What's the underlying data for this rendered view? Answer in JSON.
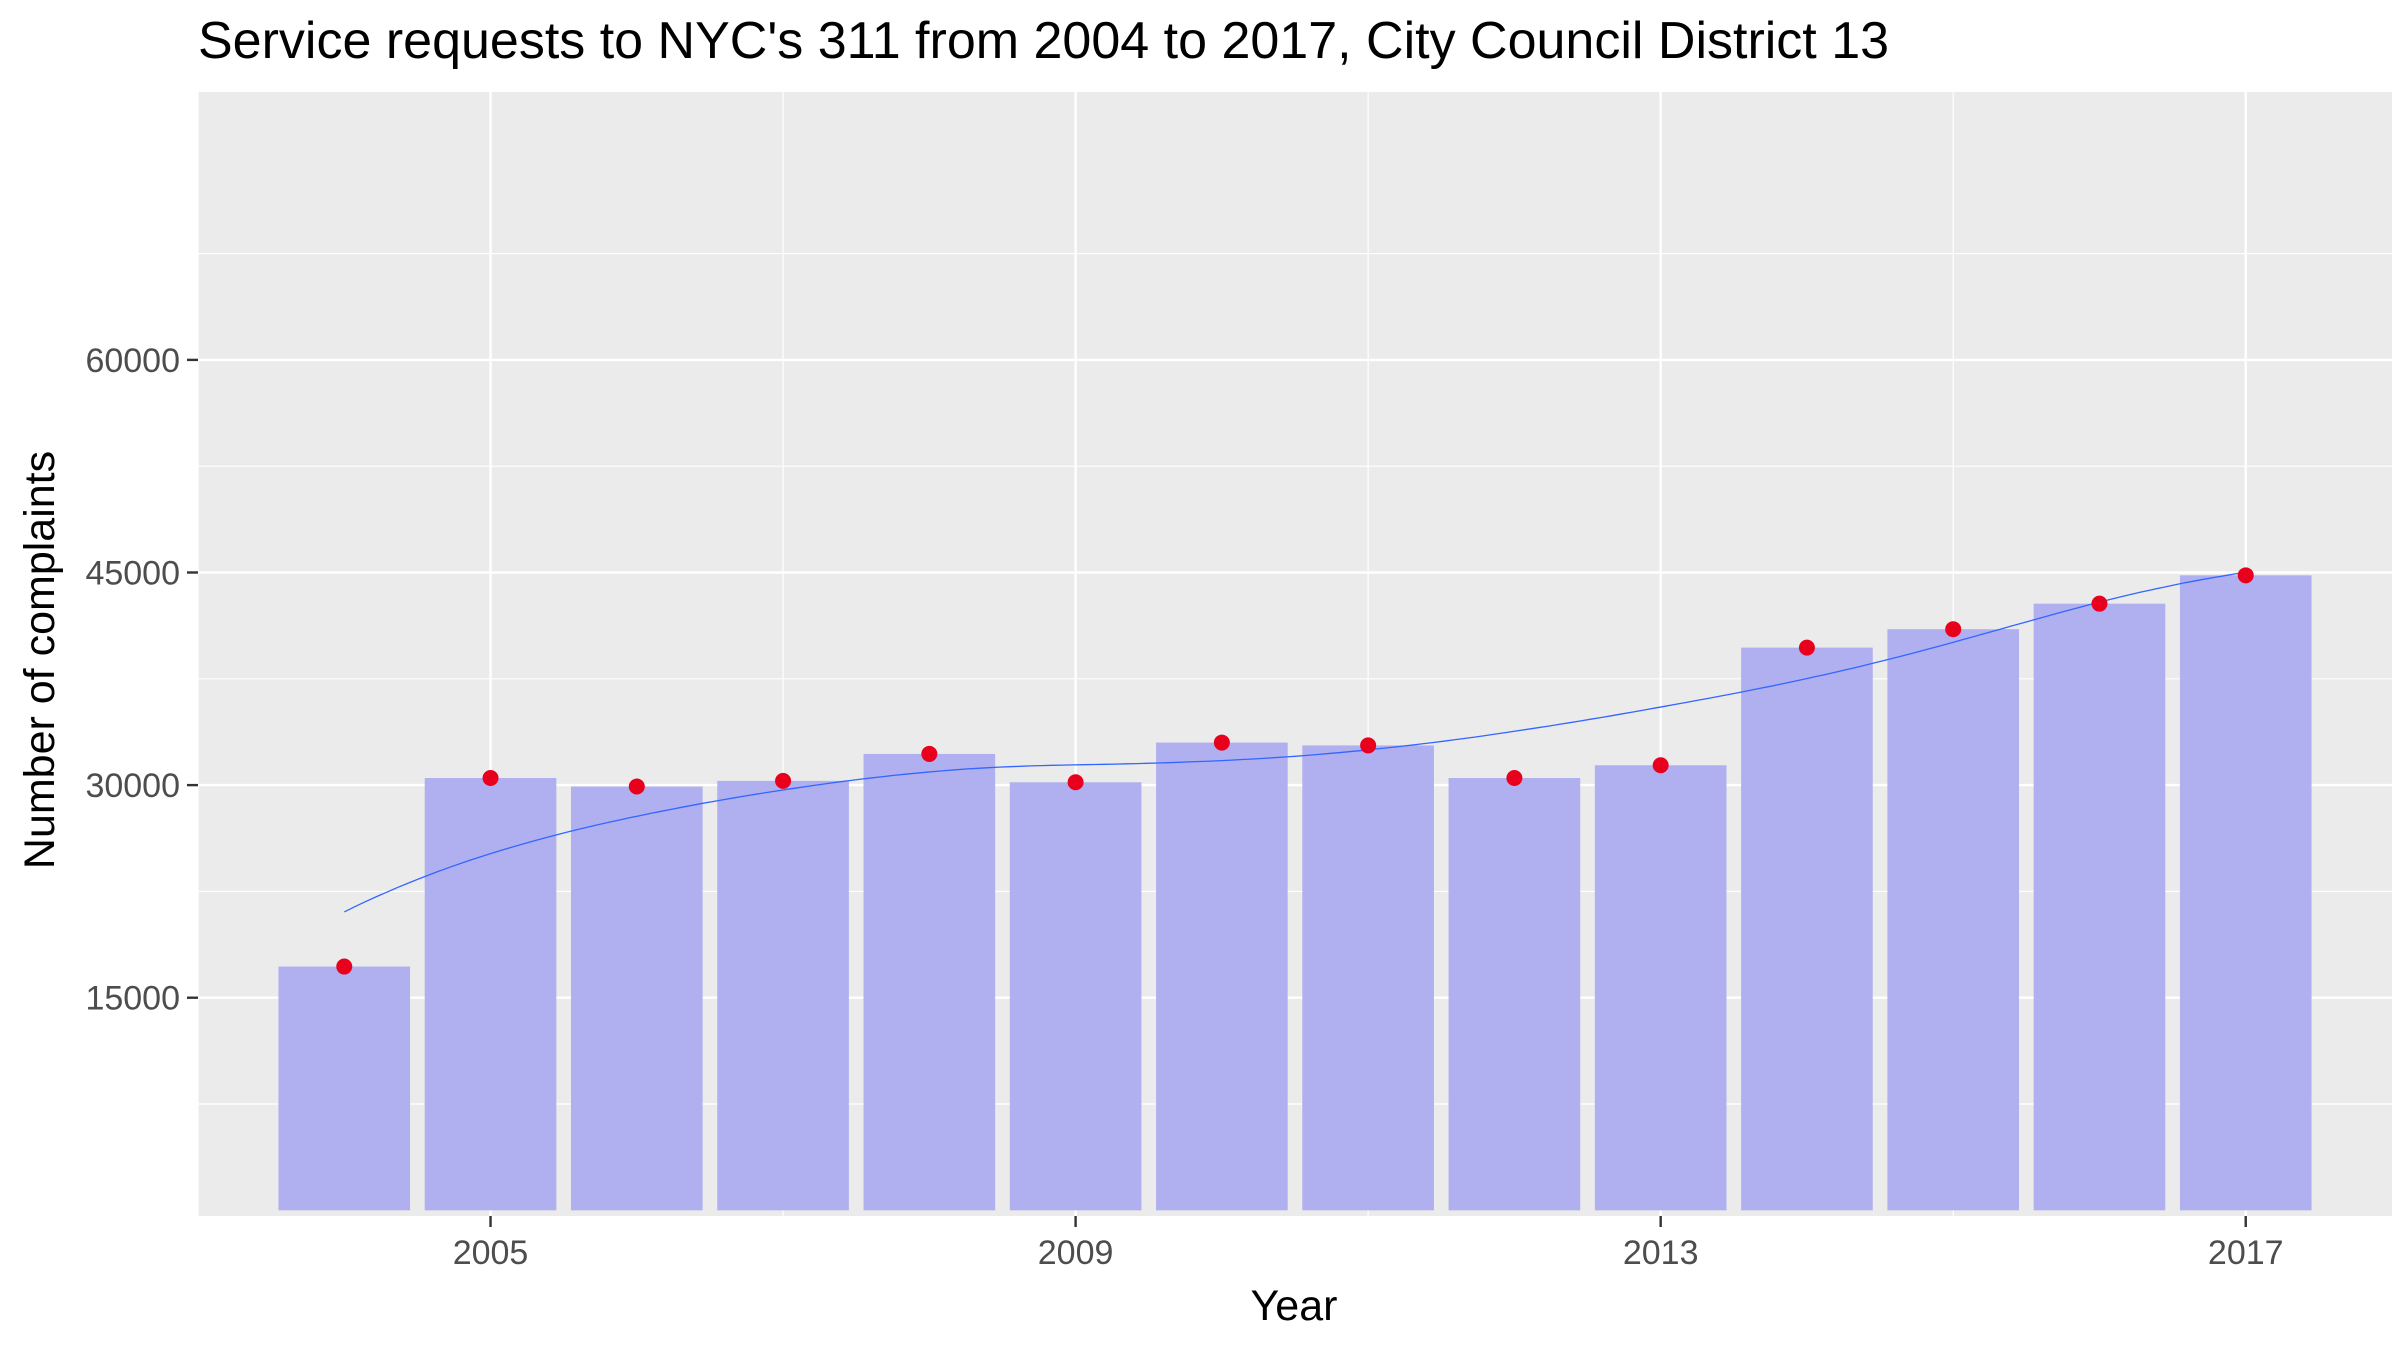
{
  "chart_data": {
    "type": "bar",
    "title": "Service requests to NYC's 311 from 2004 to 2017, City Council District 13",
    "xlabel": "Year",
    "ylabel": "Number of complaints",
    "categories": [
      2004,
      2005,
      2006,
      2007,
      2008,
      2009,
      2010,
      2011,
      2012,
      2013,
      2014,
      2015,
      2016,
      2017
    ],
    "values": [
      17200,
      30500,
      29900,
      30300,
      32200,
      30200,
      33000,
      32800,
      30500,
      31400,
      39700,
      41000,
      42800,
      44800
    ],
    "x_ticks": [
      2005,
      2009,
      2013,
      2017
    ],
    "y_ticks": [
      15000,
      30000,
      45000,
      60000
    ],
    "xlim": [
      2003,
      2018
    ],
    "ylim": [
      -400,
      78900
    ],
    "grid": true,
    "legend": "none",
    "overlays": [
      "red points at each year's value",
      "smoothed trend line"
    ],
    "colors": {
      "panel_background": "#ebebeb",
      "grid": "#ffffff",
      "bar_fill": "#b0b0f0",
      "point": "#e8001c",
      "smooth_line": "#3366ff",
      "tick_label": "#4d4d4d",
      "tick_mark": "#333333"
    }
  }
}
